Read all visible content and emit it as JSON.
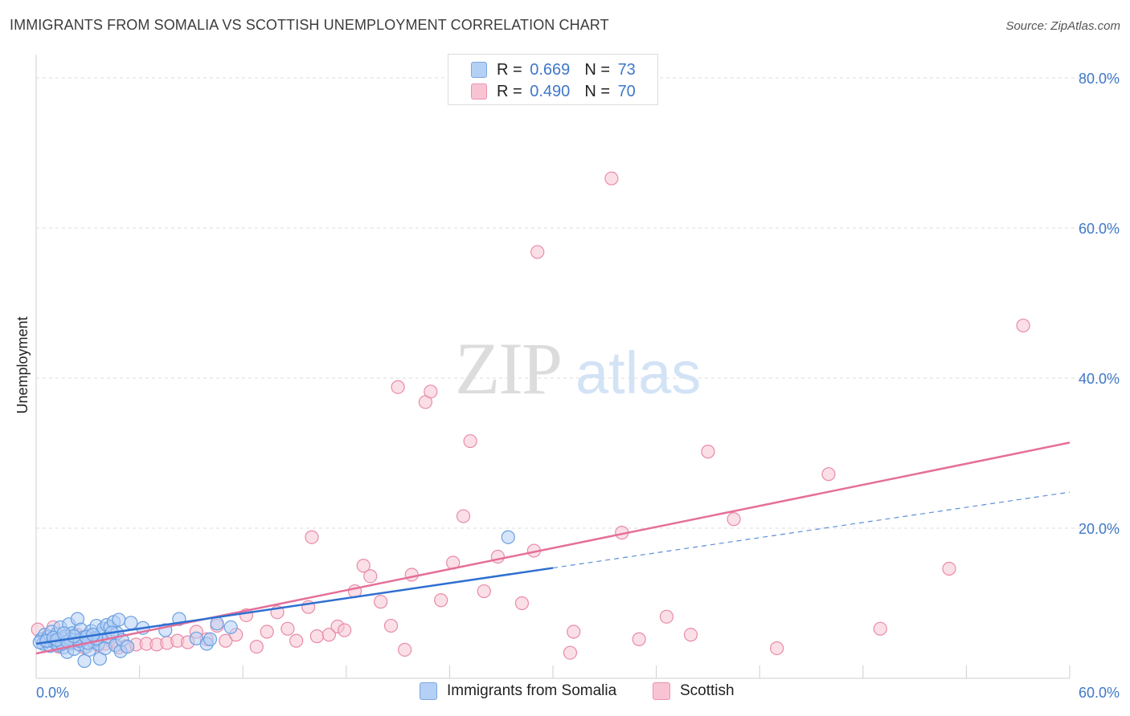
{
  "title": "IMMIGRANTS FROM SOMALIA VS SCOTTISH UNEMPLOYMENT CORRELATION CHART",
  "source": "Source: ZipAtlas.com",
  "watermark": {
    "zip": "ZIP",
    "atlas": "atlas"
  },
  "legend": {
    "rows": [
      {
        "r_label": "R =",
        "r_value": "0.669",
        "n_label": "N =",
        "n_value": "73",
        "color": "#b5d0f5"
      },
      {
        "r_label": "R =",
        "r_value": "0.490",
        "n_label": "N =",
        "n_value": "70",
        "color": "#f8c4d4"
      }
    ]
  },
  "bottom_legend": [
    "Immigrants from Somalia",
    "Scottish"
  ],
  "chart_data": {
    "type": "scatter",
    "xlabel": "",
    "ylabel": "Unemployment",
    "xlim": [
      0,
      60
    ],
    "ylim": [
      0,
      80
    ],
    "x_tick_labels": [
      "0.0%",
      "60.0%"
    ],
    "y_tick_labels": [
      "20.0%",
      "40.0%",
      "60.0%",
      "80.0%"
    ],
    "y_gridlines": [
      20,
      40,
      60,
      80
    ],
    "series": [
      {
        "name": "Immigrants from Somalia",
        "color": "#6a9fe0",
        "fill": "#b5d0f5",
        "points": [
          [
            0.3,
            5.2
          ],
          [
            0.4,
            4.6
          ],
          [
            0.5,
            5.8
          ],
          [
            0.6,
            4.9
          ],
          [
            0.7,
            5.5
          ],
          [
            0.8,
            4.3
          ],
          [
            0.9,
            6.2
          ],
          [
            1.0,
            5.0
          ],
          [
            1.1,
            4.7
          ],
          [
            1.2,
            5.9
          ],
          [
            1.3,
            4.4
          ],
          [
            1.4,
            6.8
          ],
          [
            1.5,
            5.3
          ],
          [
            1.6,
            4.1
          ],
          [
            1.7,
            5.6
          ],
          [
            1.8,
            3.5
          ],
          [
            1.9,
            7.2
          ],
          [
            2.0,
            4.8
          ],
          [
            2.1,
            6.0
          ],
          [
            2.2,
            3.9
          ],
          [
            2.3,
            5.1
          ],
          [
            2.4,
            7.9
          ],
          [
            2.5,
            4.5
          ],
          [
            2.6,
            6.5
          ],
          [
            2.7,
            5.4
          ],
          [
            2.8,
            2.3
          ],
          [
            2.9,
            4.2
          ],
          [
            3.0,
            5.7
          ],
          [
            3.1,
            3.8
          ],
          [
            3.2,
            6.3
          ],
          [
            3.3,
            4.9
          ],
          [
            3.4,
            5.2
          ],
          [
            3.5,
            7.0
          ],
          [
            3.6,
            4.6
          ],
          [
            3.7,
            2.6
          ],
          [
            3.8,
            5.9
          ],
          [
            3.9,
            6.6
          ],
          [
            4.0,
            4.0
          ],
          [
            4.1,
            7.1
          ],
          [
            4.2,
            5.5
          ],
          [
            4.3,
            6.8
          ],
          [
            4.5,
            7.5
          ],
          [
            4.6,
            4.4
          ],
          [
            4.7,
            6.0
          ],
          [
            4.8,
            7.8
          ],
          [
            4.9,
            3.6
          ],
          [
            5.0,
            5.1
          ],
          [
            5.3,
            4.2
          ],
          [
            5.5,
            7.4
          ],
          [
            6.2,
            6.7
          ],
          [
            7.5,
            6.4
          ],
          [
            8.3,
            7.9
          ],
          [
            9.3,
            5.3
          ],
          [
            9.9,
            4.6
          ],
          [
            10.1,
            5.2
          ],
          [
            10.5,
            7.3
          ],
          [
            11.3,
            6.8
          ],
          [
            0.2,
            4.8
          ],
          [
            0.6,
            5.0
          ],
          [
            1.0,
            5.4
          ],
          [
            1.5,
            4.6
          ],
          [
            2.0,
            5.2
          ],
          [
            2.5,
            5.0
          ],
          [
            3.0,
            4.7
          ],
          [
            3.5,
            5.3
          ],
          [
            1.2,
            5.1
          ],
          [
            1.8,
            4.9
          ],
          [
            2.2,
            5.6
          ],
          [
            2.9,
            5.5
          ],
          [
            3.3,
            5.8
          ],
          [
            4.4,
            6.1
          ],
          [
            1.6,
            6.0
          ],
          [
            27.4,
            18.8
          ]
        ],
        "trend": {
          "solid_from": [
            0,
            4.6
          ],
          "solid_to": [
            30.0,
            14.7
          ],
          "dashed_to": [
            60,
            24.8
          ]
        }
      },
      {
        "name": "Scottish",
        "color": "#e98aa8",
        "fill": "#f8c4d4",
        "points": [
          [
            0.1,
            6.5
          ],
          [
            0.5,
            5.0
          ],
          [
            1.0,
            6.8
          ],
          [
            1.3,
            4.2
          ],
          [
            1.6,
            5.5
          ],
          [
            2.0,
            4.6
          ],
          [
            2.4,
            5.8
          ],
          [
            2.8,
            4.1
          ],
          [
            3.2,
            5.2
          ],
          [
            3.6,
            4.4
          ],
          [
            4.0,
            4.6
          ],
          [
            4.4,
            4.9
          ],
          [
            4.8,
            4.1
          ],
          [
            5.2,
            4.3
          ],
          [
            5.8,
            4.5
          ],
          [
            6.4,
            4.6
          ],
          [
            7.0,
            4.5
          ],
          [
            7.6,
            4.7
          ],
          [
            8.2,
            5.0
          ],
          [
            8.8,
            4.8
          ],
          [
            9.3,
            6.2
          ],
          [
            9.9,
            5.2
          ],
          [
            10.5,
            7.0
          ],
          [
            11.0,
            5.0
          ],
          [
            11.6,
            5.8
          ],
          [
            12.2,
            8.4
          ],
          [
            12.8,
            4.2
          ],
          [
            13.4,
            6.2
          ],
          [
            14.0,
            8.8
          ],
          [
            14.6,
            6.6
          ],
          [
            15.1,
            5.0
          ],
          [
            15.8,
            9.5
          ],
          [
            16.3,
            5.6
          ],
          [
            17.0,
            5.8
          ],
          [
            17.5,
            6.9
          ],
          [
            17.9,
            6.4
          ],
          [
            18.5,
            11.6
          ],
          [
            19.0,
            15.0
          ],
          [
            19.4,
            13.6
          ],
          [
            20.0,
            10.2
          ],
          [
            20.6,
            7.0
          ],
          [
            21.0,
            38.8
          ],
          [
            21.4,
            3.8
          ],
          [
            21.8,
            13.8
          ],
          [
            22.6,
            36.8
          ],
          [
            22.9,
            38.2
          ],
          [
            23.5,
            10.4
          ],
          [
            24.2,
            15.4
          ],
          [
            24.8,
            21.6
          ],
          [
            25.2,
            31.6
          ],
          [
            26.0,
            11.6
          ],
          [
            26.8,
            16.2
          ],
          [
            28.2,
            10.0
          ],
          [
            28.9,
            17.0
          ],
          [
            29.1,
            56.8
          ],
          [
            31.0,
            3.4
          ],
          [
            31.2,
            6.2
          ],
          [
            33.4,
            66.6
          ],
          [
            34.0,
            19.4
          ],
          [
            35.0,
            5.2
          ],
          [
            36.6,
            8.2
          ],
          [
            38.0,
            5.8
          ],
          [
            39.0,
            30.2
          ],
          [
            40.5,
            21.2
          ],
          [
            43.0,
            4.0
          ],
          [
            46.0,
            27.2
          ],
          [
            49.0,
            6.6
          ],
          [
            53.0,
            14.6
          ],
          [
            57.3,
            47.0
          ],
          [
            16.0,
            18.8
          ]
        ],
        "trend": {
          "from": [
            0,
            3.3
          ],
          "to": [
            60,
            31.4
          ]
        }
      }
    ]
  }
}
